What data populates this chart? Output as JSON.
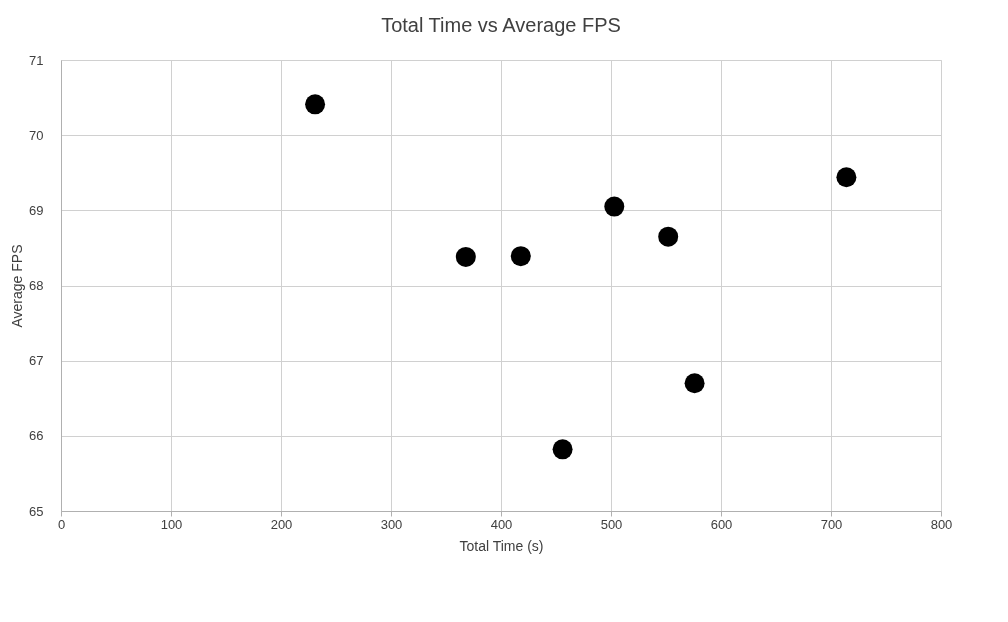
{
  "chart_data": {
    "type": "scatter",
    "title": "Total Time vs Average FPS",
    "xlabel": "Total Time (s)",
    "ylabel": "Average FPS",
    "x": [
      231,
      368,
      418,
      456,
      503,
      552,
      576,
      714
    ],
    "series": [
      {
        "color": "#000000",
        "values": [
          70.41,
          68.38,
          68.39,
          65.82,
          69.05,
          68.65,
          66.7,
          69.44
        ]
      }
    ],
    "xlim": [
      0,
      800
    ],
    "xticks": [
      0,
      100,
      200,
      300,
      400,
      500,
      600,
      700,
      800
    ],
    "ylim": [
      65,
      71
    ],
    "yticks": [
      65,
      66,
      67,
      68,
      69,
      70,
      71
    ],
    "grid": true,
    "marker": "circle"
  }
}
